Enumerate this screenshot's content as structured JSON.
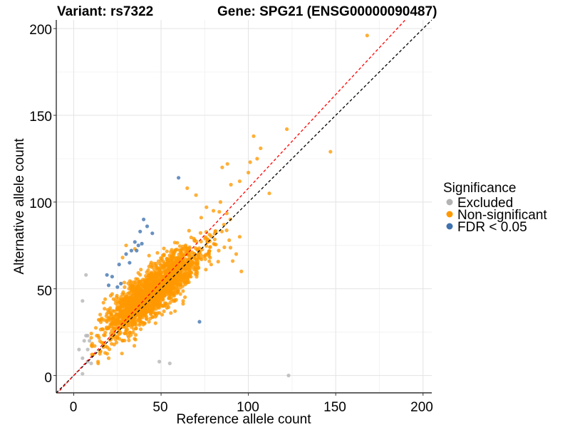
{
  "chart_data": {
    "type": "scatter",
    "title_left": "Variant: rs7322",
    "title_right": "Gene: SPG21 (ENSG00000090487)",
    "xlabel": "Reference allele count",
    "ylabel": "Alternative allele count",
    "xlim": [
      -10,
      205
    ],
    "ylim": [
      -10,
      205
    ],
    "x_ticks": [
      0,
      50,
      100,
      150,
      200
    ],
    "y_ticks": [
      0,
      50,
      100,
      150,
      200
    ],
    "x_tick_labels": [
      "0",
      "50",
      "100",
      "150",
      "200"
    ],
    "y_tick_labels": [
      "0",
      "50",
      "100",
      "150",
      "200"
    ],
    "grid": true,
    "reference_lines": [
      {
        "name": "identity",
        "slope": 1.0,
        "intercept": 0,
        "color": "#000000",
        "style": "dashed"
      },
      {
        "name": "fitted",
        "slope": 1.08,
        "intercept": 0,
        "color": "#ff0000",
        "style": "dashed"
      }
    ],
    "legend": {
      "title": "Significance",
      "placement": "right",
      "entries": [
        {
          "label": "Excluded",
          "color": "#b3b3b3"
        },
        {
          "label": "Non-significant",
          "color": "#ff9900"
        },
        {
          "label": "FDR < 0.05",
          "color": "#3f72ae"
        }
      ]
    },
    "series": [
      {
        "name": "Excluded",
        "color": "#b3b3b3",
        "points": [
          [
            5,
            1
          ],
          [
            7,
            58
          ],
          [
            5,
            43
          ],
          [
            7,
            23
          ],
          [
            8,
            23
          ],
          [
            9,
            20
          ],
          [
            6,
            20
          ],
          [
            3,
            15
          ],
          [
            8,
            15
          ],
          [
            5,
            10
          ],
          [
            8,
            8
          ],
          [
            10,
            7
          ],
          [
            49,
            8
          ],
          [
            55,
            7
          ],
          [
            123,
            0
          ]
        ]
      },
      {
        "name": "FDR < 0.05",
        "color": "#3f72ae",
        "points": [
          [
            60,
            114
          ],
          [
            40,
            90
          ],
          [
            42,
            86
          ],
          [
            38,
            83
          ],
          [
            45,
            82
          ],
          [
            33,
            72
          ],
          [
            36,
            72
          ],
          [
            37,
            75
          ],
          [
            39,
            76
          ],
          [
            35,
            77
          ],
          [
            30,
            70
          ],
          [
            26,
            64
          ],
          [
            32,
            65
          ],
          [
            19,
            58
          ],
          [
            22,
            57
          ],
          [
            20,
            52
          ],
          [
            25,
            51
          ],
          [
            27,
            53
          ],
          [
            72,
            31
          ]
        ]
      },
      {
        "name": "Non-significant",
        "color": "#ff9900",
        "outliers": [
          [
            168,
            196
          ],
          [
            122,
            142
          ],
          [
            103,
            138
          ],
          [
            147,
            129
          ],
          [
            107,
            131
          ],
          [
            105,
            125
          ],
          [
            101,
            123
          ],
          [
            88,
            122
          ],
          [
            85,
            120
          ],
          [
            100,
            117
          ],
          [
            95,
            112
          ],
          [
            90,
            110
          ],
          [
            112,
            105
          ],
          [
            84,
            100
          ],
          [
            76,
            97
          ],
          [
            80,
            95
          ],
          [
            86,
            87
          ],
          [
            81,
            83
          ],
          [
            95,
            80
          ],
          [
            89,
            78
          ],
          [
            93,
            70
          ],
          [
            91,
            66
          ],
          [
            96,
            60
          ],
          [
            83,
            72
          ],
          [
            78,
            74
          ],
          [
            73,
            91
          ],
          [
            65,
            108
          ],
          [
            70,
            104
          ],
          [
            18,
            13
          ],
          [
            20,
            10
          ],
          [
            14,
            7
          ],
          [
            11,
            12
          ],
          [
            15,
            14
          ],
          [
            12,
            17
          ],
          [
            16,
            19
          ],
          [
            14,
            23
          ],
          [
            19,
            31
          ],
          [
            16,
            33
          ],
          [
            21,
            36
          ],
          [
            18,
            44
          ],
          [
            22,
            47
          ],
          [
            17,
            42
          ],
          [
            28,
            68
          ],
          [
            30,
            75
          ],
          [
            35,
            73
          ]
        ],
        "cloud": {
          "n": 1900,
          "center": [
            45,
            48
          ],
          "sd_ref": 14,
          "sd_alt": 13,
          "correlation": 0.85,
          "seed": 7322
        }
      }
    ]
  }
}
